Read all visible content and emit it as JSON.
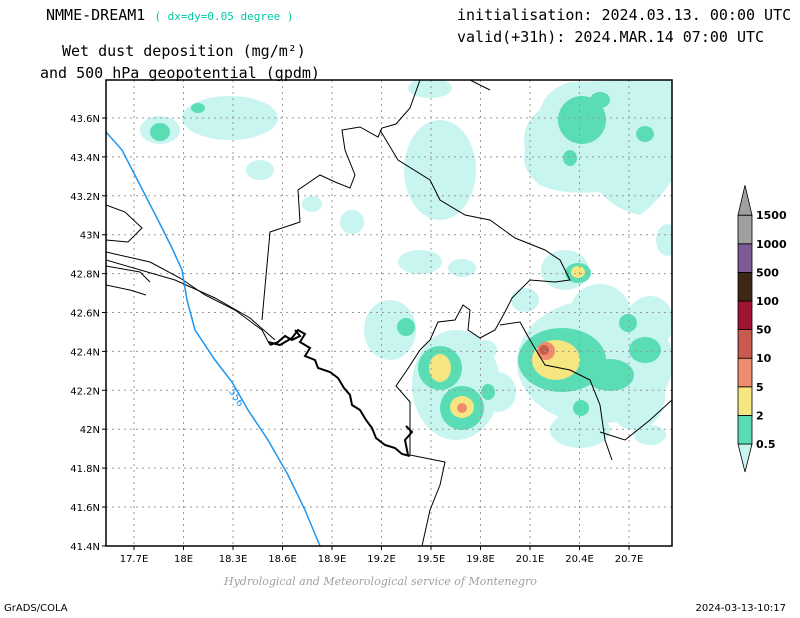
{
  "header": {
    "model": "NMME-DREAM1",
    "resolution": "( dx=dy=0.05 degree )",
    "variable_line1": "Wet dust deposition (mg/m²)",
    "variable_line2": "and 500 hPa geopotential (gpdm)",
    "initialisation": "initialisation: 2024.03.13. 00:00 UTC",
    "valid": "valid(+31h): 2024.MAR.14 07:00 UTC"
  },
  "map": {
    "lat_ticks": [
      "43.6N",
      "43.4N",
      "43.2N",
      "43N",
      "42.8N",
      "42.6N",
      "42.4N",
      "42.2N",
      "42N",
      "41.8N",
      "41.6N",
      "41.4N"
    ],
    "lon_ticks": [
      "17.7E",
      "18E",
      "18.3E",
      "18.6E",
      "18.9E",
      "19.2E",
      "19.5E",
      "19.8E",
      "20.1E",
      "20.4E",
      "20.7E"
    ],
    "contour_label": "556",
    "contour_color": "#1e96f0",
    "grid": true
  },
  "legend": {
    "levels": [
      "0.5",
      "2",
      "5",
      "10",
      "50",
      "100",
      "500",
      "1000",
      "1500"
    ],
    "colors": [
      "#c8f5f0",
      "#5adcb4",
      "#f5e682",
      "#f08c6e",
      "#c85a50",
      "#a01432",
      "#3c2814",
      "#7c5a96",
      "#a0a0a0"
    ]
  },
  "footer": {
    "credit": "Hydrological and Meteorological service of Montenegro",
    "left": "GrADS/COLA",
    "right": "2024-03-13-10:17"
  }
}
